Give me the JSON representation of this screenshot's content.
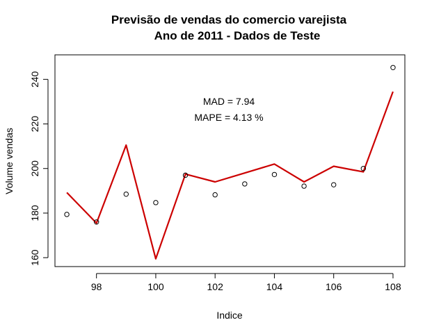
{
  "chart_data": {
    "type": "line",
    "title": "Previsão de vendas do comercio varejista",
    "subtitle": "Ano de 2011 - Dados de Teste",
    "xlabel": "Indice",
    "ylabel": "Volume vendas",
    "xlim": [
      96.6,
      108.4
    ],
    "ylim": [
      156,
      251
    ],
    "x_ticks": [
      98,
      100,
      102,
      104,
      106,
      108
    ],
    "y_ticks": [
      160,
      180,
      200,
      220,
      240
    ],
    "annotations": [
      "MAD = 7.94",
      "MAPE = 4.13 %"
    ],
    "grid": false,
    "series": [
      {
        "style": "points-open-circle",
        "color": "#000000",
        "x": [
          97,
          98,
          99,
          100,
          101,
          102,
          103,
          104,
          105,
          106,
          107,
          108
        ],
        "y": [
          179.4,
          176,
          188.5,
          184.7,
          197,
          188.2,
          193.1,
          197.3,
          192.1,
          192.7,
          200,
          245.3
        ]
      },
      {
        "style": "line",
        "color": "#cc0000",
        "x": [
          97,
          98,
          99,
          100,
          101,
          102,
          103,
          104,
          105,
          106,
          107,
          108
        ],
        "y": [
          189.2,
          175.5,
          210.5,
          159.5,
          197.5,
          194,
          198,
          202,
          194,
          201,
          198.5,
          234.5
        ]
      }
    ]
  }
}
